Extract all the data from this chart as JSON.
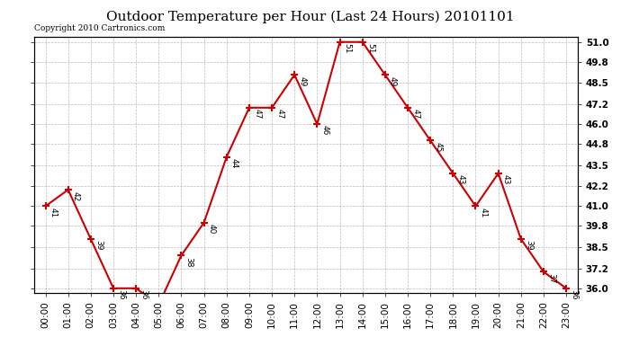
{
  "title": "Outdoor Temperature per Hour (Last 24 Hours) 20101101",
  "copyright": "Copyright 2010 Cartronics.com",
  "hours": [
    "00:00",
    "01:00",
    "02:00",
    "03:00",
    "04:00",
    "05:00",
    "06:00",
    "07:00",
    "08:00",
    "09:00",
    "10:00",
    "11:00",
    "12:00",
    "13:00",
    "14:00",
    "15:00",
    "16:00",
    "17:00",
    "18:00",
    "19:00",
    "20:00",
    "21:00",
    "22:00",
    "23:00"
  ],
  "temps": [
    41,
    42,
    39,
    36,
    36,
    35,
    38,
    40,
    44,
    47,
    47,
    49,
    46,
    51,
    51,
    49,
    47,
    45,
    43,
    41,
    43,
    39,
    37,
    36
  ],
  "ylim_min": 35.7,
  "ylim_max": 51.3,
  "line_color": "#cc0000",
  "marker_color": "#cc0000",
  "bg_color": "#ffffff",
  "grid_color": "#aaaaaa",
  "title_fontsize": 11,
  "copyright_fontsize": 6.5,
  "label_fontsize": 6.5,
  "tick_fontsize": 7.5,
  "yticks": [
    36.0,
    37.2,
    38.5,
    39.8,
    41.0,
    42.2,
    43.5,
    44.8,
    46.0,
    47.2,
    48.5,
    49.8,
    51.0
  ]
}
